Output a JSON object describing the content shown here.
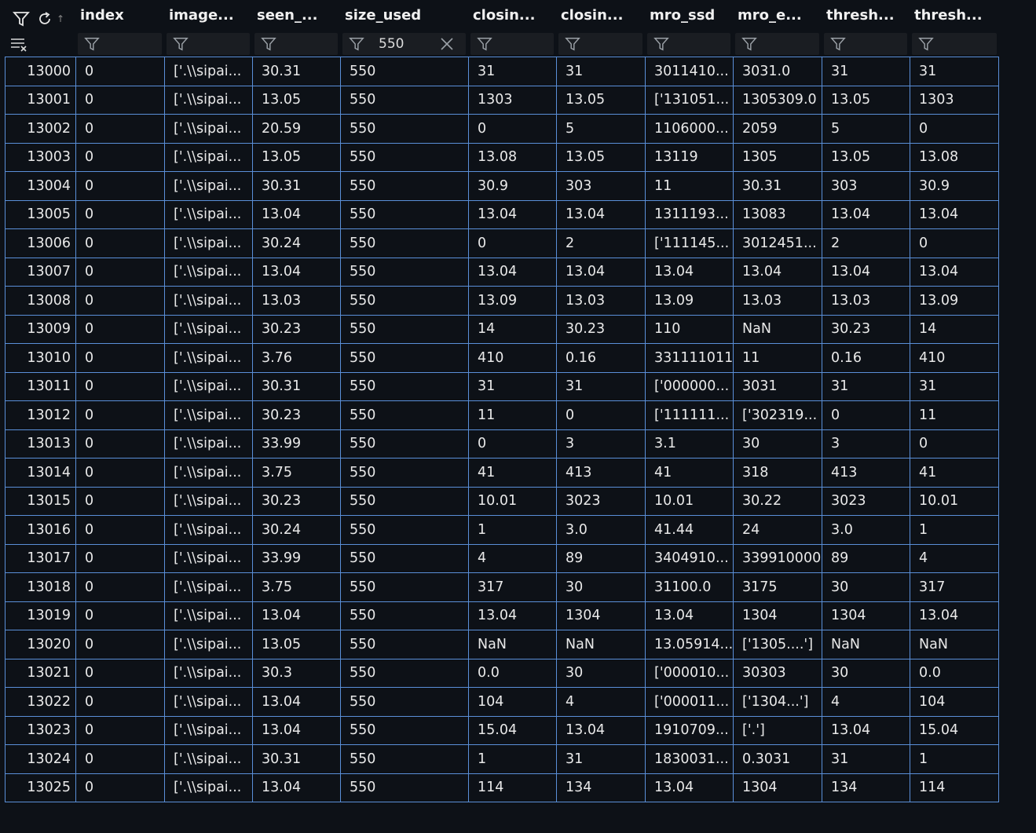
{
  "columns": [
    "",
    "index",
    "image...",
    "seen_...",
    "size_used",
    "closin...",
    "closin...",
    "mro_ssd",
    "mro_e...",
    "thresh...",
    "thresh..."
  ],
  "filters": [
    "",
    "",
    "",
    "",
    "550",
    "",
    "",
    "",
    "",
    "",
    ""
  ],
  "icons": {
    "toolbar": [
      "filter-icon",
      "refresh-icon",
      "sort-up-icon",
      "clear-filters-icon"
    ],
    "filter": "filter-icon",
    "clear": "close-icon"
  },
  "rows": [
    [
      "13000",
      "0",
      "['.\\\\sipai...",
      "30.31",
      "550",
      "31",
      "31",
      "3011410...",
      "3031.0",
      "31",
      "31"
    ],
    [
      "13001",
      "0",
      "['.\\\\sipai...",
      "13.05",
      "550",
      "1303",
      "13.05",
      "['131051...",
      "1305309.0",
      "13.05",
      "1303"
    ],
    [
      "13002",
      "0",
      "['.\\\\sipai...",
      "20.59",
      "550",
      "0",
      "5",
      "1106000...",
      "2059",
      "5",
      "0"
    ],
    [
      "13003",
      "0",
      "['.\\\\sipai...",
      "13.05",
      "550",
      "13.08",
      "13.05",
      "13119",
      "1305",
      "13.05",
      "13.08"
    ],
    [
      "13004",
      "0",
      "['.\\\\sipai...",
      "30.31",
      "550",
      "30.9",
      "303",
      "11",
      "30.31",
      "303",
      "30.9"
    ],
    [
      "13005",
      "0",
      "['.\\\\sipai...",
      "13.04",
      "550",
      "13.04",
      "13.04",
      "1311193...",
      "13083",
      "13.04",
      "13.04"
    ],
    [
      "13006",
      "0",
      "['.\\\\sipai...",
      "30.24",
      "550",
      "0",
      "2",
      "['111145...",
      "3012451...",
      "2",
      "0"
    ],
    [
      "13007",
      "0",
      "['.\\\\sipai...",
      "13.04",
      "550",
      "13.04",
      "13.04",
      "13.04",
      "13.04",
      "13.04",
      "13.04"
    ],
    [
      "13008",
      "0",
      "['.\\\\sipai...",
      "13.03",
      "550",
      "13.09",
      "13.03",
      "13.09",
      "13.03",
      "13.03",
      "13.09"
    ],
    [
      "13009",
      "0",
      "['.\\\\sipai...",
      "30.23",
      "550",
      "14",
      "30.23",
      "110",
      "NaN",
      "30.23",
      "14"
    ],
    [
      "13010",
      "0",
      "['.\\\\sipai...",
      "3.76",
      "550",
      "410",
      "0.16",
      "331111011",
      "11",
      "0.16",
      "410"
    ],
    [
      "13011",
      "0",
      "['.\\\\sipai...",
      "30.31",
      "550",
      "31",
      "31",
      "['000000...",
      "3031",
      "31",
      "31"
    ],
    [
      "13012",
      "0",
      "['.\\\\sipai...",
      "30.23",
      "550",
      "11",
      "0",
      "['111111...",
      "['302319...",
      "0",
      "11"
    ],
    [
      "13013",
      "0",
      "['.\\\\sipai...",
      "33.99",
      "550",
      "0",
      "3",
      "3.1",
      "30",
      "3",
      "0"
    ],
    [
      "13014",
      "0",
      "['.\\\\sipai...",
      "3.75",
      "550",
      "41",
      "413",
      "41",
      "318",
      "413",
      "41"
    ],
    [
      "13015",
      "0",
      "['.\\\\sipai...",
      "30.23",
      "550",
      "10.01",
      "3023",
      "10.01",
      "30.22",
      "3023",
      "10.01"
    ],
    [
      "13016",
      "0",
      "['.\\\\sipai...",
      "30.24",
      "550",
      "1",
      "3.0",
      "41.44",
      "24",
      "3.0",
      "1"
    ],
    [
      "13017",
      "0",
      "['.\\\\sipai...",
      "33.99",
      "550",
      "4",
      "89",
      "3404910...",
      "339910000",
      "89",
      "4"
    ],
    [
      "13018",
      "0",
      "['.\\\\sipai...",
      "3.75",
      "550",
      "317",
      "30",
      "31100.0",
      "3175",
      "30",
      "317"
    ],
    [
      "13019",
      "0",
      "['.\\\\sipai...",
      "13.04",
      "550",
      "13.04",
      "1304",
      "13.04",
      "1304",
      "1304",
      "13.04"
    ],
    [
      "13020",
      "0",
      "['.\\\\sipai...",
      "13.05",
      "550",
      "NaN",
      "NaN",
      "13.05914...",
      "['1305....']",
      "NaN",
      "NaN"
    ],
    [
      "13021",
      "0",
      "['.\\\\sipai...",
      "30.3",
      "550",
      "0.0",
      "30",
      "['000010...",
      "30303",
      "30",
      "0.0"
    ],
    [
      "13022",
      "0",
      "['.\\\\sipai...",
      "13.04",
      "550",
      "104",
      "4",
      "['000011...",
      "['1304...']",
      "4",
      "104"
    ],
    [
      "13023",
      "0",
      "['.\\\\sipai...",
      "13.04",
      "550",
      "15.04",
      "13.04",
      "1910709...",
      "['.']",
      "13.04",
      "15.04"
    ],
    [
      "13024",
      "0",
      "['.\\\\sipai...",
      "30.31",
      "550",
      "1",
      "31",
      "1830031...",
      "0.3031",
      "31",
      "1"
    ],
    [
      "13025",
      "0",
      "['.\\\\sipai...",
      "13.04",
      "550",
      "114",
      "134",
      "13.04",
      "1304",
      "134",
      "114"
    ]
  ]
}
